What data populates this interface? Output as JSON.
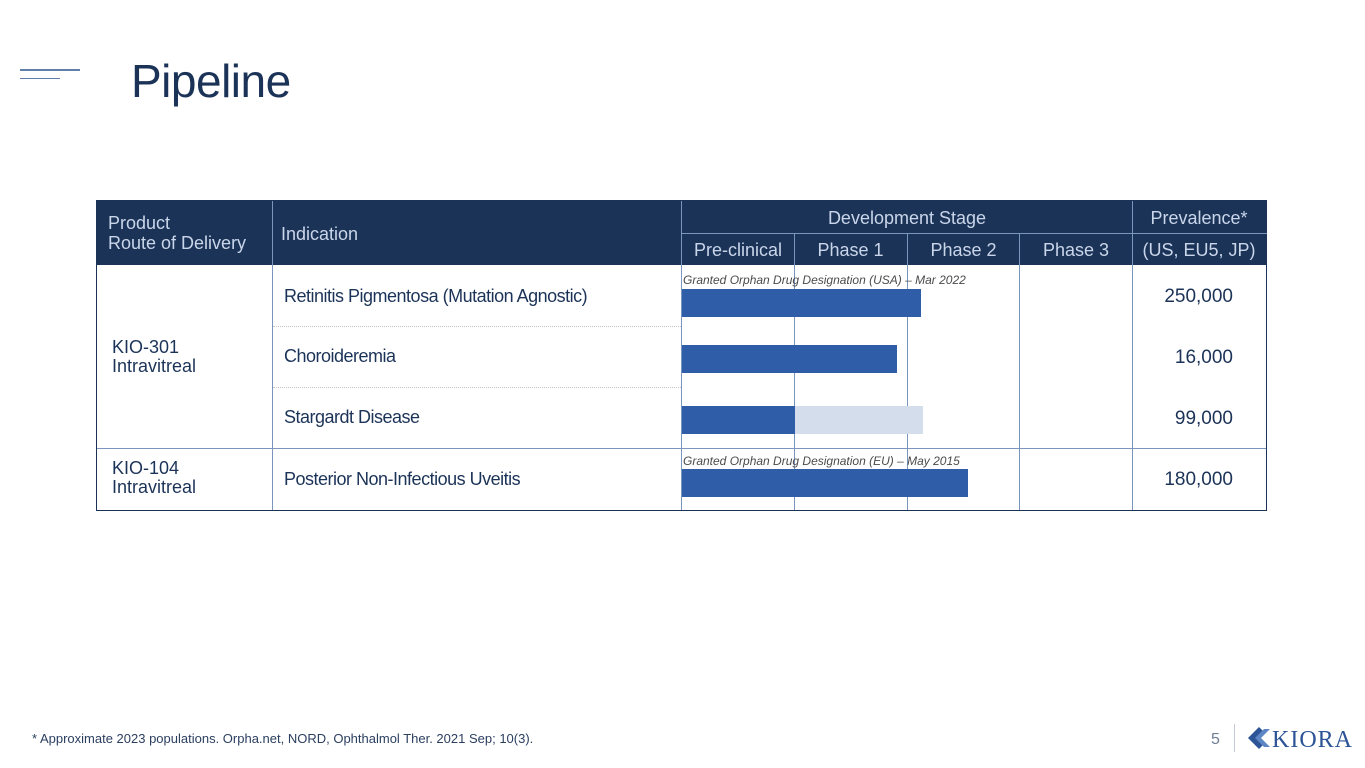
{
  "title": "Pipeline",
  "table": {
    "headers": {
      "product_line1": "Product",
      "product_line2": "Route of Delivery",
      "indication": "Indication",
      "development_stage": "Development Stage",
      "prevalence": "Prevalence*",
      "prevalence_sub": "(US, EU5, JP)",
      "stages": [
        "Pre-clinical",
        "Phase 1",
        "Phase 2",
        "Phase 3"
      ]
    },
    "products": [
      {
        "name": "KIO-301",
        "route": "Intravitreal"
      },
      {
        "name": "KIO-104",
        "route": "Intravitreal"
      }
    ],
    "rows": [
      {
        "indication": "Retinitis Pigmentosa (Mutation Agnostic)",
        "prevalence": "250,000",
        "designation": "Granted Orphan Drug Designation (USA) – Mar 2022",
        "progress_stages": 2.12
      },
      {
        "indication": "Choroideremia",
        "prevalence": "16,000",
        "designation": "",
        "progress_stages": 1.91
      },
      {
        "indication": "Stargardt Disease",
        "prevalence": "99,000",
        "designation": "",
        "progress_stages": 1.0,
        "planned_stages": 2.14
      },
      {
        "indication": "Posterior Non-Infectious Uveitis",
        "prevalence": "180,000",
        "designation": "Granted Orphan Drug Designation (EU) – May 2015",
        "progress_stages": 2.54
      }
    ]
  },
  "colors": {
    "header_bg": "#1c3358",
    "bar_active": "#2f5da8",
    "bar_planned": "#d3ddec"
  },
  "footnote": "*  Approximate 2023 populations. Orpha.net, NORD, Ophthalmol Ther. 2021 Sep; 10(3).",
  "page_number": "5",
  "logo": {
    "text": "KIORA",
    "icon": "kiora-k-icon"
  }
}
